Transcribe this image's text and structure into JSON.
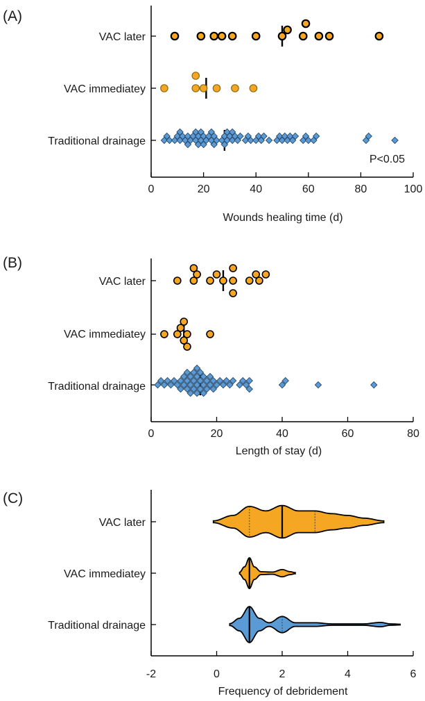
{
  "chart_data": [
    {
      "panel": "(A)",
      "type": "scatter",
      "xlabel": "Wounds healing time (d)",
      "xlim": [
        0,
        100
      ],
      "xticks": [
        0,
        20,
        40,
        60,
        80,
        100
      ],
      "categories": [
        "VAC later",
        "VAC immediatey",
        "Traditional drainage"
      ],
      "annotation": "P<0.05",
      "series": [
        {
          "name": "VAC later",
          "marker": "circle",
          "median": 50,
          "values": [
            9,
            19,
            24,
            27,
            31,
            40,
            50,
            52,
            58,
            59,
            64,
            68,
            87
          ]
        },
        {
          "name": "VAC immediatey",
          "marker": "circle",
          "median": 21,
          "values": [
            5,
            17,
            17,
            20,
            25,
            32,
            39
          ]
        },
        {
          "name": "Traditional drainage",
          "marker": "diamond",
          "median": 28,
          "values": [
            5,
            6,
            7,
            9,
            10,
            11,
            11,
            12,
            13,
            14,
            14,
            15,
            16,
            17,
            17,
            18,
            18,
            19,
            19,
            20,
            20,
            21,
            22,
            23,
            23,
            24,
            24,
            25,
            27,
            28,
            28,
            29,
            29,
            30,
            31,
            31,
            32,
            33,
            34,
            36,
            37,
            38,
            40,
            41,
            42,
            43,
            45,
            48,
            49,
            50,
            51,
            52,
            53,
            54,
            55,
            58,
            59,
            60,
            62,
            63,
            82,
            83,
            93
          ]
        }
      ]
    },
    {
      "panel": "(B)",
      "type": "scatter",
      "xlabel": "Length of stay (d)",
      "xlim": [
        0,
        80
      ],
      "xticks": [
        0,
        20,
        40,
        60,
        80
      ],
      "categories": [
        "VAC later",
        "VAC immediatey",
        "Traditional drainage"
      ],
      "series": [
        {
          "name": "VAC later",
          "marker": "circle",
          "median": 22,
          "values": [
            8,
            13,
            13,
            14,
            18,
            20,
            22,
            25,
            25,
            25,
            30,
            32,
            33,
            35
          ]
        },
        {
          "name": "VAC immediatey",
          "marker": "circle",
          "median": 10,
          "values": [
            4,
            8,
            9,
            10,
            10,
            11,
            11,
            18
          ]
        },
        {
          "name": "Traditional drainage",
          "marker": "diamond",
          "median": 15,
          "values": [
            2,
            3,
            4,
            5,
            6,
            7,
            8,
            9,
            9,
            10,
            10,
            11,
            11,
            11,
            12,
            12,
            12,
            13,
            13,
            13,
            14,
            14,
            14,
            14,
            15,
            15,
            15,
            16,
            16,
            16,
            17,
            17,
            18,
            18,
            19,
            19,
            20,
            21,
            22,
            23,
            24,
            25,
            27,
            28,
            29,
            30,
            30,
            40,
            41,
            51,
            68
          ]
        }
      ]
    },
    {
      "panel": "(C)",
      "type": "violin",
      "xlabel": "Frequency of debridement",
      "xlim": [
        -2,
        6
      ],
      "xticks": [
        -2,
        0,
        2,
        4,
        6
      ],
      "categories": [
        "VAC later",
        "VAC immediatey",
        "Traditional drainage"
      ],
      "series": [
        {
          "name": "VAC later",
          "color": "#F5A623",
          "median": 2,
          "q1": 1,
          "q3": 3,
          "min": -0.1,
          "max": 5.1,
          "density": [
            [
              -0.1,
              0.05
            ],
            [
              0.5,
              0.35
            ],
            [
              1.0,
              0.85
            ],
            [
              1.5,
              0.6
            ],
            [
              2.0,
              0.9
            ],
            [
              2.5,
              0.6
            ],
            [
              3.0,
              0.6
            ],
            [
              3.5,
              0.45
            ],
            [
              4.0,
              0.35
            ],
            [
              4.5,
              0.2
            ],
            [
              5.1,
              0.05
            ]
          ]
        },
        {
          "name": "VAC immediatey",
          "color": "#F5A623",
          "median": 1,
          "q1": 1,
          "q3": 1,
          "min": 0.7,
          "max": 2.4,
          "density": [
            [
              0.7,
              0.05
            ],
            [
              0.85,
              0.35
            ],
            [
              1.0,
              0.85
            ],
            [
              1.15,
              0.35
            ],
            [
              1.35,
              0.08
            ],
            [
              1.7,
              0.06
            ],
            [
              2.0,
              0.2
            ],
            [
              2.25,
              0.08
            ],
            [
              2.4,
              0.03
            ]
          ]
        },
        {
          "name": "Traditional drainage",
          "color": "#5B9BD5",
          "median": 1,
          "q1": 1,
          "q3": 2,
          "min": 0.4,
          "max": 5.6,
          "density": [
            [
              0.4,
              0.05
            ],
            [
              0.7,
              0.35
            ],
            [
              1.0,
              1.0
            ],
            [
              1.3,
              0.35
            ],
            [
              1.6,
              0.1
            ],
            [
              2.0,
              0.45
            ],
            [
              2.4,
              0.1
            ],
            [
              3.0,
              0.1
            ],
            [
              3.5,
              0.04
            ],
            [
              4.5,
              0.04
            ],
            [
              5.0,
              0.12
            ],
            [
              5.3,
              0.04
            ],
            [
              5.6,
              0.02
            ]
          ]
        }
      ]
    }
  ]
}
